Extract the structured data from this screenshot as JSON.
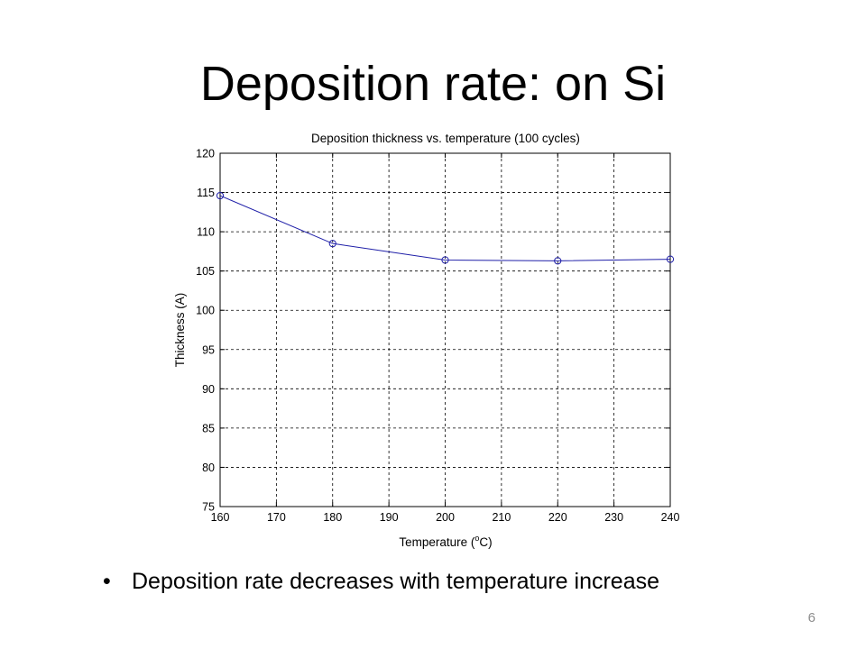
{
  "slide": {
    "title": "Deposition rate: on Si",
    "bullet_symbol": "•",
    "bullet": "Deposition rate decreases with temperature increase",
    "page_number": "6"
  },
  "chart_data": {
    "type": "line",
    "title": "Deposition thickness vs. temperature (100 cycles)",
    "xlabel_prefix": "Temperature (",
    "xlabel_sup": "o",
    "xlabel_suffix": "C)",
    "ylabel": "Thickness (A)",
    "x": [
      160,
      180,
      200,
      220,
      240
    ],
    "series": [
      {
        "values": [
          114.6,
          108.5,
          106.4,
          106.3,
          106.5
        ],
        "color": "#1f1fa8",
        "marker": "circle"
      }
    ],
    "xlim": [
      160,
      240
    ],
    "ylim": [
      75,
      120
    ],
    "xticks": [
      160,
      170,
      180,
      190,
      200,
      210,
      220,
      230,
      240
    ],
    "yticks": [
      75,
      80,
      85,
      90,
      95,
      100,
      105,
      110,
      115,
      120
    ],
    "grid": true,
    "grid_style": "dashed"
  }
}
